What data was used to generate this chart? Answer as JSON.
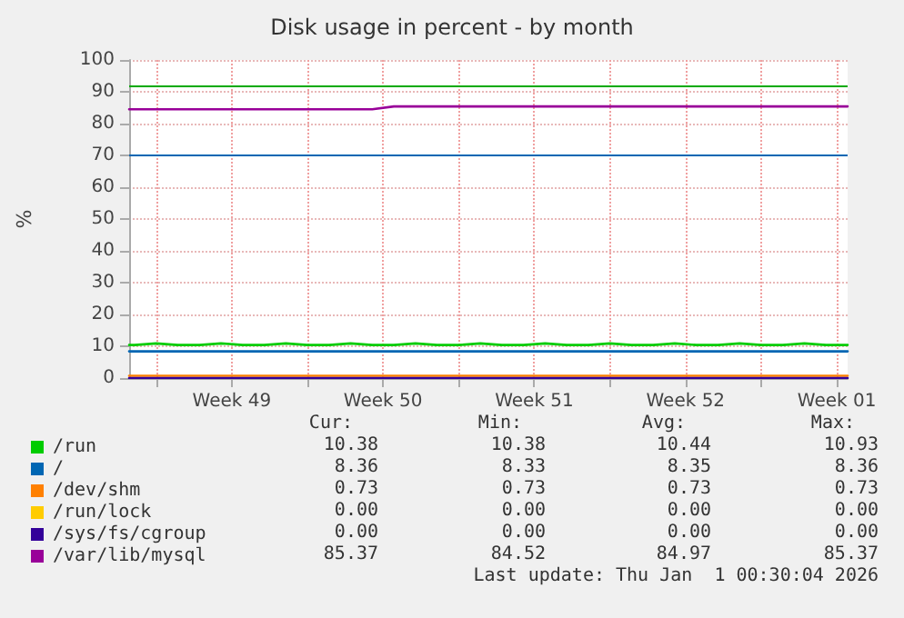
{
  "chart_data": {
    "type": "line",
    "title": "Disk usage in percent - by month",
    "ylabel": "%",
    "x": [
      "2025-11-29T18:00",
      "2025-11-30",
      "2025-12-01",
      "2025-12-02",
      "2025-12-03",
      "2025-12-04",
      "2025-12-05",
      "2025-12-06",
      "2025-12-07",
      "2025-12-08",
      "2025-12-09",
      "2025-12-10",
      "2025-12-11",
      "2025-12-12",
      "2025-12-13",
      "2025-12-14",
      "2025-12-15",
      "2025-12-16",
      "2025-12-17",
      "2025-12-18",
      "2025-12-19",
      "2025-12-20",
      "2025-12-21",
      "2025-12-22",
      "2025-12-23",
      "2025-12-24",
      "2025-12-25",
      "2025-12-26",
      "2025-12-27",
      "2025-12-28",
      "2025-12-29",
      "2025-12-30",
      "2025-12-31",
      "2026-01-01",
      "2026-01-02T00:00"
    ],
    "series": [
      {
        "name": "/run",
        "color": "#00cc00",
        "values": [
          10.4,
          10.4,
          10.9,
          10.4,
          10.4,
          10.9,
          10.4,
          10.4,
          10.9,
          10.4,
          10.4,
          10.9,
          10.4,
          10.4,
          10.9,
          10.4,
          10.4,
          10.9,
          10.4,
          10.4,
          10.9,
          10.4,
          10.4,
          10.9,
          10.4,
          10.4,
          10.9,
          10.4,
          10.4,
          10.9,
          10.4,
          10.4,
          10.9,
          10.4,
          10.4
        ]
      },
      {
        "name": "/",
        "color": "#0066b3",
        "values": [
          8.4,
          8.4,
          8.4,
          8.4,
          8.4,
          8.4,
          8.4,
          8.4,
          8.4,
          8.4,
          8.4,
          8.4,
          8.4,
          8.4,
          8.4,
          8.4,
          8.4,
          8.4,
          8.4,
          8.4,
          8.4,
          8.4,
          8.4,
          8.4,
          8.4,
          8.4,
          8.4,
          8.4,
          8.4,
          8.4,
          8.4,
          8.4,
          8.4,
          8.4,
          8.4
        ]
      },
      {
        "name": "/dev/shm",
        "color": "#ff8000",
        "values": [
          0.7,
          0.7,
          0.7,
          0.7,
          0.7,
          0.7,
          0.7,
          0.7,
          0.7,
          0.7,
          0.7,
          0.7,
          0.7,
          0.7,
          0.7,
          0.7,
          0.7,
          0.7,
          0.7,
          0.7,
          0.7,
          0.7,
          0.7,
          0.7,
          0.7,
          0.7,
          0.7,
          0.7,
          0.7,
          0.7,
          0.7,
          0.7,
          0.7,
          0.7,
          0.7
        ]
      },
      {
        "name": "/run/lock",
        "color": "#ffcc00",
        "values": [
          null,
          null,
          null,
          null,
          null,
          null,
          null,
          null,
          null,
          null,
          null,
          null,
          null,
          null,
          null,
          null,
          null,
          null,
          null,
          null,
          null,
          null,
          null,
          null,
          null,
          null,
          null,
          null,
          null,
          null,
          null,
          null,
          null,
          null,
          null
        ]
      },
      {
        "name": "/sys/fs/cgroup",
        "color": "#330099",
        "values": [
          0,
          0,
          0,
          0,
          0,
          0,
          0,
          0,
          0,
          0,
          0,
          0,
          0,
          0,
          0,
          0,
          0,
          0,
          0,
          0,
          0,
          0,
          0,
          0,
          0,
          0,
          0,
          0,
          0,
          0,
          0,
          0,
          0,
          0,
          0
        ]
      },
      {
        "name": "/var/lib/mysql",
        "color": "#990099",
        "values": [
          84.5,
          84.5,
          84.5,
          84.5,
          84.5,
          84.5,
          84.5,
          84.5,
          84.5,
          84.5,
          84.5,
          84.5,
          84.5,
          85.4,
          85.4,
          85.4,
          85.4,
          85.4,
          85.4,
          85.4,
          85.4,
          85.4,
          85.4,
          85.4,
          85.4,
          85.4,
          85.4,
          85.4,
          85.4,
          85.4,
          85.4,
          85.4,
          85.4,
          85.4,
          85.4
        ]
      }
    ],
    "ref_lines": [
      {
        "axis": "y",
        "value": 92,
        "color": "#00aa00"
      },
      {
        "axis": "y",
        "value": 70,
        "color": "#0066b3"
      }
    ],
    "xlim": [
      "2025-11-29T18:00",
      "2026-01-02T00:00"
    ],
    "xticks": [
      {
        "value": "2025-12-01",
        "label": null
      },
      {
        "value": "2025-12-04T12:00",
        "label": "Week 49"
      },
      {
        "value": "2025-12-08",
        "label": null
      },
      {
        "value": "2025-12-11T12:00",
        "label": "Week 50"
      },
      {
        "value": "2025-12-15",
        "label": null
      },
      {
        "value": "2025-12-18T12:00",
        "label": "Week 51"
      },
      {
        "value": "2025-12-22",
        "label": null
      },
      {
        "value": "2025-12-25T12:00",
        "label": "Week 52"
      },
      {
        "value": "2025-12-29",
        "label": null
      },
      {
        "value": "2026-01-01T12:00",
        "label": "Week 01"
      }
    ],
    "ylim": [
      0,
      100
    ],
    "yticks": [
      0,
      10,
      20,
      30,
      40,
      50,
      60,
      70,
      80,
      90,
      100
    ],
    "grid": true,
    "legend": "bottom",
    "marker": "none",
    "line_style": "solid",
    "annotations": [
      "Cur:",
      "Min:",
      "Avg:",
      "Max:",
      "10.38",
      "10.38",
      "10.44",
      "10.93",
      "8.36",
      "8.33",
      "8.35",
      "8.36",
      "0.73",
      "0.73",
      "0.73",
      "0.73",
      "0.00",
      "0.00",
      "0.00",
      "0.00",
      "0.00",
      "0.00",
      "0.00",
      "0.00",
      "85.37",
      "84.52",
      "84.97",
      "85.37",
      "Last update: Thu Jan  1 00:30:04 2026"
    ]
  }
}
